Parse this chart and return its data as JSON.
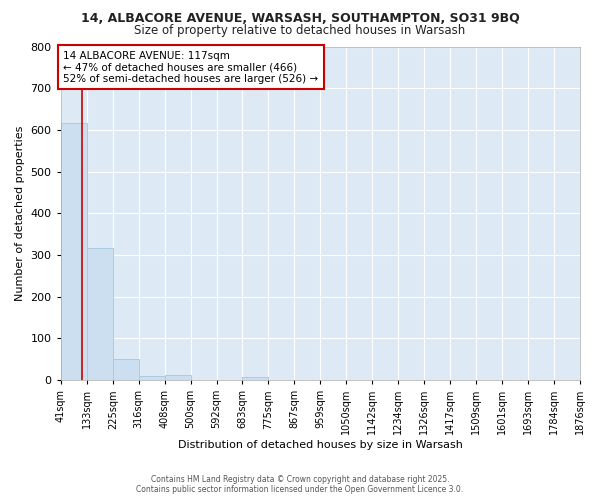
{
  "title1": "14, ALBACORE AVENUE, WARSASH, SOUTHAMPTON, SO31 9BQ",
  "title2": "Size of property relative to detached houses in Warsash",
  "xlabel": "Distribution of detached houses by size in Warsash",
  "ylabel": "Number of detached properties",
  "bar_color": "#ccdff0",
  "bar_edge_color": "#aacce0",
  "plot_bg_color": "#ddeaf5",
  "fig_bg_color": "#ffffff",
  "grid_color": "#ffffff",
  "red_line_color": "#cc0000",
  "annotation_text": "14 ALBACORE AVENUE: 117sqm\n← 47% of detached houses are smaller (466)\n52% of semi-detached houses are larger (526) →",
  "annotation_box_facecolor": "#ffffff",
  "annotation_border_color": "#cc0000",
  "property_size": 117,
  "bin_edges": [
    41,
    133,
    225,
    316,
    408,
    500,
    592,
    683,
    775,
    867,
    959,
    1050,
    1142,
    1234,
    1326,
    1417,
    1509,
    1601,
    1693,
    1784,
    1876
  ],
  "bar_heights": [
    617,
    317,
    50,
    10,
    12,
    0,
    0,
    8,
    0,
    0,
    0,
    0,
    0,
    0,
    0,
    0,
    0,
    0,
    0,
    0
  ],
  "ylim": [
    0,
    800
  ],
  "yticks": [
    0,
    100,
    200,
    300,
    400,
    500,
    600,
    700,
    800
  ],
  "footer_line1": "Contains HM Land Registry data © Crown copyright and database right 2025.",
  "footer_line2": "Contains public sector information licensed under the Open Government Licence 3.0."
}
